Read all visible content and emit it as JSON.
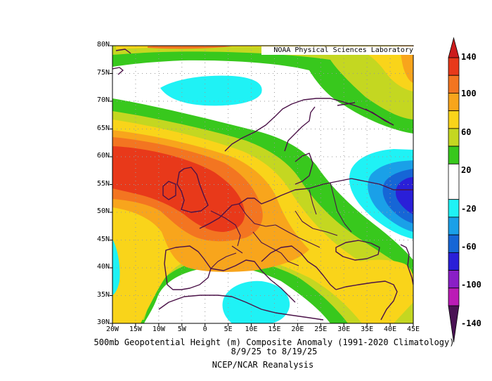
{
  "map": {
    "title": "500mb Geopotential Height (m) Composite Anomaly (1991-2020 Climatology)",
    "date_range": "8/9/25  to 8/19/25",
    "source": "NCEP/NCAR Reanalysis",
    "credit": "NOAA Physical Sciences Laboratory",
    "lat_labels": [
      "80N",
      "75N",
      "70N",
      "65N",
      "60N",
      "55N",
      "50N",
      "45N",
      "40N",
      "35N",
      "30N"
    ],
    "lon_labels": [
      "20W",
      "15W",
      "10W",
      "5W",
      "0",
      "5E",
      "10E",
      "15E",
      "20E",
      "25E",
      "30E",
      "35E",
      "40E",
      "45E"
    ],
    "lat_range": [
      30,
      80
    ],
    "lon_range": [
      -20,
      45
    ],
    "colorbar": {
      "labels": [
        "140",
        "100",
        "60",
        "20",
        "-20",
        "-60",
        "-100",
        "-140"
      ],
      "bins": [
        {
          "min": 120,
          "max": 140,
          "color": "#e8391a"
        },
        {
          "min": 100,
          "max": 120,
          "color": "#f37521"
        },
        {
          "min": 80,
          "max": 100,
          "color": "#f8a51c"
        },
        {
          "min": 60,
          "max": 80,
          "color": "#f9d41a"
        },
        {
          "min": 40,
          "max": 60,
          "color": "#c4d721"
        },
        {
          "min": 20,
          "max": 40,
          "color": "#38c81d"
        },
        {
          "min": -20,
          "max": 20,
          "color": "#ffffff"
        },
        {
          "min": -40,
          "max": -20,
          "color": "#1ff2f5"
        },
        {
          "min": -60,
          "max": -40,
          "color": "#1aa0e8"
        },
        {
          "min": -80,
          "max": -60,
          "color": "#1666d6"
        },
        {
          "min": -100,
          "max": -80,
          "color": "#2a1fd8"
        },
        {
          "min": -120,
          "max": -100,
          "color": "#8a1fc6"
        },
        {
          "min": -140,
          "max": -120,
          "color": "#bb1bb6"
        }
      ],
      "over_color": "#cc1c1c",
      "under_color": "#4a1254"
    },
    "coast_color": "#4b1248"
  }
}
